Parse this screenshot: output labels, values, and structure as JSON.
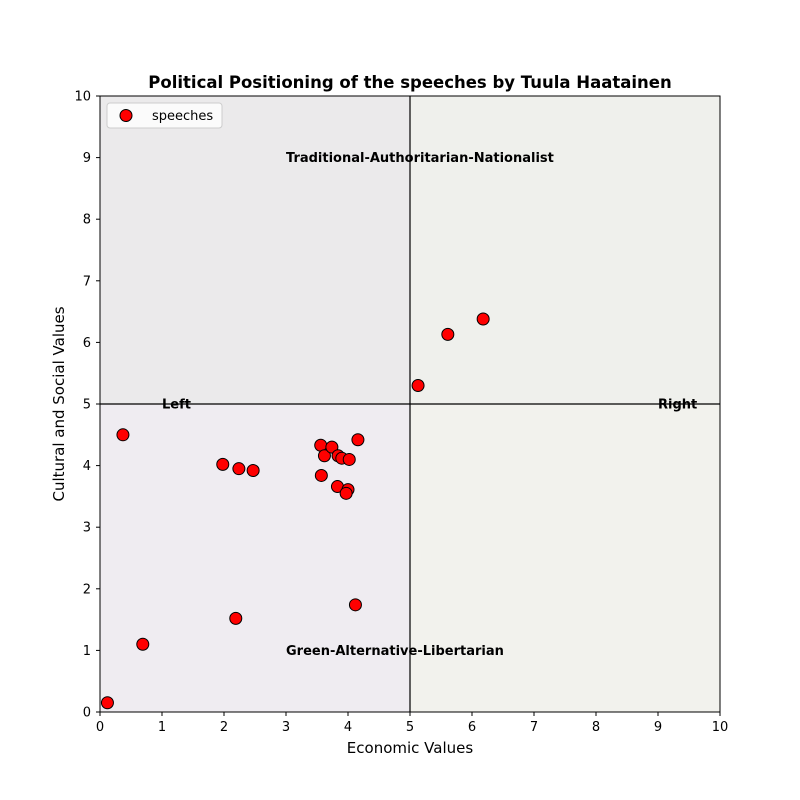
{
  "chart_data": {
    "type": "scatter",
    "title": "Political Positioning of the speeches by Tuula Haatainen",
    "xlabel": "Economic Values",
    "ylabel": "Cultural and Social Values",
    "xlim": [
      0,
      10
    ],
    "ylim": [
      0,
      10
    ],
    "xticks": [
      0,
      1,
      2,
      3,
      4,
      5,
      6,
      7,
      8,
      9,
      10
    ],
    "yticks": [
      0,
      1,
      2,
      3,
      4,
      5,
      6,
      7,
      8,
      9,
      10
    ],
    "grid": false,
    "legend_placement": "top-left",
    "quadrant_split": {
      "x": 5,
      "y": 5
    },
    "quadrant_colors": {
      "top_left": "#ebeaeb",
      "top_right": "#eff0ec",
      "bottom_left": "#efecf1",
      "bottom_right": "#f2f2ed"
    },
    "annotations": [
      {
        "text": "Traditional-Authoritarian-Nationalist",
        "x": 3.0,
        "y": 9.0
      },
      {
        "text": "Green-Alternative-Libertarian",
        "x": 3.0,
        "y": 1.0
      },
      {
        "text": "Left",
        "x": 1.0,
        "y": 5.0
      },
      {
        "text": "Right",
        "x": 9.0,
        "y": 5.0
      }
    ],
    "series": [
      {
        "name": "speeches",
        "color": "#ff0000",
        "edgecolor": "#000000",
        "points": [
          [
            0.12,
            0.15
          ],
          [
            0.69,
            1.1
          ],
          [
            2.19,
            1.52
          ],
          [
            4.12,
            1.74
          ],
          [
            0.37,
            4.5
          ],
          [
            1.98,
            4.02
          ],
          [
            2.24,
            3.95
          ],
          [
            2.47,
            3.92
          ],
          [
            3.56,
            4.33
          ],
          [
            3.62,
            4.16
          ],
          [
            3.74,
            4.3
          ],
          [
            3.84,
            4.16
          ],
          [
            3.9,
            4.12
          ],
          [
            4.02,
            4.1
          ],
          [
            4.16,
            4.42
          ],
          [
            3.57,
            3.84
          ],
          [
            3.83,
            3.66
          ],
          [
            4.0,
            3.61
          ],
          [
            3.97,
            3.55
          ],
          [
            5.13,
            5.3
          ],
          [
            5.61,
            6.13
          ],
          [
            6.18,
            6.38
          ]
        ]
      }
    ]
  }
}
